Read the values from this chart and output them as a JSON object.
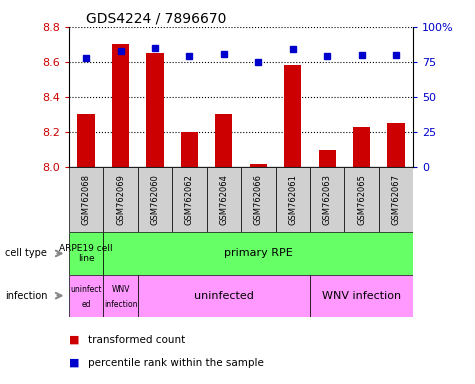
{
  "title": "GDS4224 / 7896670",
  "samples": [
    "GSM762068",
    "GSM762069",
    "GSM762060",
    "GSM762062",
    "GSM762064",
    "GSM762066",
    "GSM762061",
    "GSM762063",
    "GSM762065",
    "GSM762067"
  ],
  "red_values": [
    8.3,
    8.7,
    8.65,
    8.2,
    8.3,
    8.02,
    8.58,
    8.1,
    8.23,
    8.25
  ],
  "blue_values": [
    78,
    83,
    85,
    79,
    81,
    75,
    84,
    79,
    80,
    80
  ],
  "ylim_left": [
    8.0,
    8.8
  ],
  "ylim_right": [
    0,
    100
  ],
  "yticks_left": [
    8.0,
    8.2,
    8.4,
    8.6,
    8.8
  ],
  "yticks_right": [
    0,
    25,
    50,
    75,
    100
  ],
  "ytick_labels_right": [
    "0",
    "25",
    "50",
    "75",
    "100%"
  ],
  "red_color": "#cc0000",
  "blue_color": "#0000cc",
  "bar_width": 0.5,
  "background_color": "#ffffff",
  "tick_label_color_left": "#cc0000",
  "tick_label_color_right": "#0000cc",
  "cell_type_green": "#66ff66",
  "infection_pink": "#ff99ff",
  "sample_gray": "#d0d0d0"
}
